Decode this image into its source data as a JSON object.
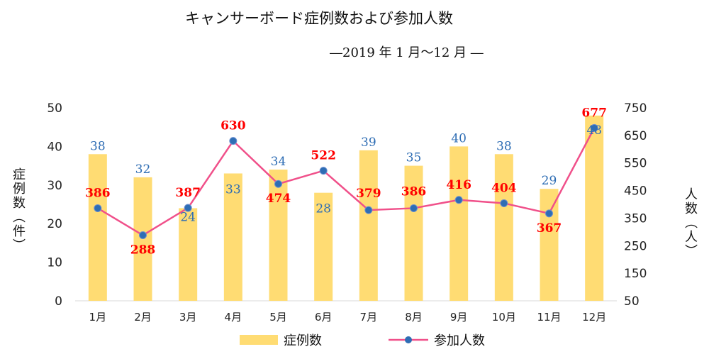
{
  "colors": {
    "bar": "#ffdc73",
    "line": "#f0508a",
    "marker": "#2e6db4",
    "bar_label": "#2e6db4",
    "line_label": "#ff0000"
  },
  "header": {
    "title": "キャンサーボード症例数および参加人数",
    "subtitle": "―2019 年 1 月～12 月 ―"
  },
  "axes": {
    "left_title": "症例数（件）",
    "right_title": "人数（人）"
  },
  "legend": {
    "bar": "症例数",
    "line": "参加人数",
    "position": "bottom"
  },
  "chart_data": {
    "type": "bar",
    "categories": [
      "1月",
      "2月",
      "3月",
      "4月",
      "5月",
      "6月",
      "7月",
      "8月",
      "9月",
      "10月",
      "11月",
      "12月"
    ],
    "series": [
      {
        "name": "症例数",
        "type": "bar",
        "axis": "left",
        "values": [
          38,
          32,
          24,
          33,
          34,
          28,
          39,
          35,
          40,
          38,
          29,
          48
        ]
      },
      {
        "name": "参加人数",
        "type": "line",
        "axis": "right",
        "values": [
          386,
          288,
          387,
          630,
          474,
          522,
          379,
          386,
          416,
          404,
          367,
          677
        ]
      }
    ],
    "ylim_left": [
      0,
      50
    ],
    "yticks_left": [
      0,
      10,
      20,
      30,
      40,
      50
    ],
    "ylim_right": [
      50,
      750
    ],
    "yticks_right": [
      50,
      150,
      250,
      350,
      450,
      550,
      650,
      750
    ],
    "ylabel_left": "症例数（件）",
    "ylabel_right": "人数（人）",
    "grid": false,
    "legend": "bottom"
  }
}
